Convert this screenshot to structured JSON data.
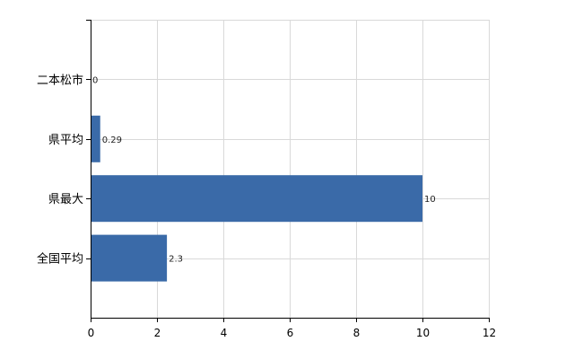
{
  "chart_data": {
    "type": "bar",
    "orientation": "horizontal",
    "categories": [
      "二本松市",
      "県平均",
      "県最大",
      "全国平均"
    ],
    "values": [
      0,
      0.29,
      10,
      2.3
    ],
    "value_labels": [
      "0",
      "0.29",
      "10",
      "2.3"
    ],
    "xlim": [
      0,
      12
    ],
    "xticks": [
      0,
      2,
      4,
      6,
      8,
      10,
      12
    ],
    "grid": true,
    "legend": "none",
    "bar_color": "#3a6aa8"
  }
}
